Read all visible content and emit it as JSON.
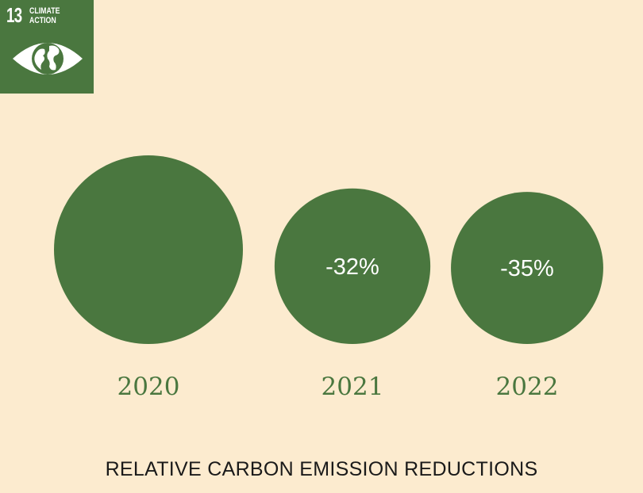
{
  "badge": {
    "number": "13",
    "title_line1": "CLIMATE",
    "title_line2": "ACTION",
    "icon": "eye-globe-icon",
    "color": "#4a773f"
  },
  "chart_data": {
    "type": "bubble",
    "title": "RELATIVE CARBON EMISSION REDUCTIONS",
    "categories": [
      "2020",
      "2021",
      "2022"
    ],
    "values": [
      0,
      -32,
      -35
    ],
    "labels": [
      "",
      "-32%",
      "-35%"
    ],
    "unit": "%",
    "color": "#4a773f",
    "background": "#fcebcf"
  }
}
